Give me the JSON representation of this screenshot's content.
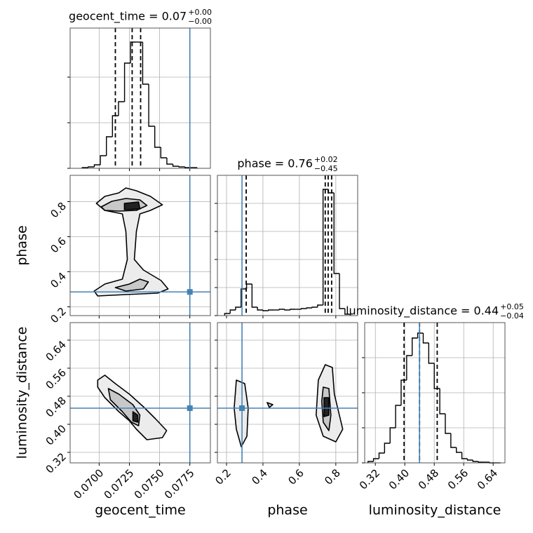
{
  "chart_data": [
    {
      "type": "histogram",
      "title": "geocent_time = 0.07",
      "title_plus": "+0.00",
      "title_minus": "−0.00",
      "bins": [
        0.0686,
        0.0691,
        0.0696,
        0.0701,
        0.0706,
        0.0711,
        0.0716,
        0.0721,
        0.0726,
        0.0731,
        0.0736,
        0.0741,
        0.0746,
        0.0751,
        0.0756,
        0.0761,
        0.0766,
        0.0771,
        0.0776,
        0.0781
      ],
      "counts": [
        1,
        2,
        5,
        18,
        45,
        75,
        95,
        150,
        180,
        180,
        120,
        60,
        30,
        15,
        6,
        3,
        2,
        1,
        1
      ],
      "xlim": [
        0.0676,
        0.0792
      ],
      "xticks": [
        {
          "value": 0.07,
          "label": "0.0700"
        },
        {
          "value": 0.0725,
          "label": "0.0725"
        },
        {
          "value": 0.075,
          "label": "0.0750"
        },
        {
          "value": 0.0775,
          "label": "0.0775"
        }
      ],
      "ylim": [
        0,
        200
      ],
      "yticks": [
        0,
        65,
        130
      ],
      "quantiles": [
        0.07134,
        0.07273,
        0.07343
      ],
      "truth": 0.0775,
      "color": "#000000",
      "truth_color": "#4682b4"
    },
    {
      "type": "contour",
      "ylabel": "phase",
      "xlim": [
        0.0676,
        0.0792
      ],
      "xticks": [
        {
          "value": 0.07,
          "label": "0.0700"
        },
        {
          "value": 0.0725,
          "label": "0.0725"
        },
        {
          "value": 0.075,
          "label": "0.0750"
        },
        {
          "value": 0.0775,
          "label": "0.0775"
        }
      ],
      "ylim": [
        0.15,
        0.95
      ],
      "yticks": [
        0.2,
        0.4,
        0.6,
        0.8
      ],
      "x_truth": 0.0775,
      "y_truth": 0.285,
      "truth_color": "#4682b4",
      "contours": [
        {
          "fill": "#ececec",
          "x": [
            0.06977,
            0.07047,
            0.07163,
            0.07221,
            0.07308,
            0.07424,
            0.07523,
            0.07424,
            0.07337,
            0.07308,
            0.07291,
            0.07366,
            0.07512,
            0.0757,
            0.07483,
            0.07221,
            0.06988,
            0.06959,
            0.07047,
            0.07192,
            0.07233,
            0.07221,
            0.07192,
            0.07047
          ],
          "y": [
            0.79,
            0.83,
            0.85,
            0.878,
            0.862,
            0.83,
            0.782,
            0.75,
            0.73,
            0.63,
            0.47,
            0.41,
            0.35,
            0.302,
            0.278,
            0.27,
            0.262,
            0.29,
            0.33,
            0.358,
            0.47,
            0.63,
            0.73,
            0.75
          ]
        },
        {
          "fill": "#c8c8c8",
          "x": [
            0.07017,
            0.07105,
            0.07221,
            0.07337,
            0.07395,
            0.07308,
            0.07163,
            0.07047
          ],
          "y": [
            0.77,
            0.802,
            0.818,
            0.81,
            0.778,
            0.75,
            0.746,
            0.75
          ]
        },
        {
          "fill": "#c8c8c8",
          "x": [
            0.07134,
            0.0725,
            0.07337,
            0.07407,
            0.07366,
            0.07221
          ],
          "y": [
            0.31,
            0.33,
            0.358,
            0.342,
            0.302,
            0.29
          ]
        },
        {
          "fill": "#222222",
          "x": [
            0.07209,
            0.07326,
            0.07337,
            0.07209
          ],
          "y": [
            0.79,
            0.798,
            0.758,
            0.754
          ]
        }
      ]
    },
    {
      "type": "contour",
      "xlabel": "geocent_time",
      "ylabel": "luminosity_distance",
      "xlim": [
        0.0676,
        0.0792
      ],
      "xticks": [
        {
          "value": 0.07,
          "label": "0.0700"
        },
        {
          "value": 0.0725,
          "label": "0.0725"
        },
        {
          "value": 0.075,
          "label": "0.0750"
        },
        {
          "value": 0.0775,
          "label": "0.0775"
        }
      ],
      "ylim": [
        0.29,
        0.69
      ],
      "yticks": [
        0.32,
        {
          "value": 0.4,
          "label": "0.40"
        },
        0.48,
        0.56,
        0.64
      ],
      "x_truth": 0.0775,
      "y_truth": 0.446,
      "truth_color": "#4682b4",
      "contours": [
        {
          "fill": "#ececec",
          "x": [
            0.06988,
            0.07047,
            0.07134,
            0.0725,
            0.07366,
            0.07465,
            0.07558,
            0.07523,
            0.07395,
            0.07308,
            0.0725,
            0.07163,
            0.07047,
            0.06988
          ],
          "y": [
            0.526,
            0.54,
            0.516,
            0.486,
            0.45,
            0.416,
            0.382,
            0.362,
            0.356,
            0.386,
            0.41,
            0.436,
            0.476,
            0.506
          ]
        },
        {
          "fill": "#c8c8c8",
          "x": [
            0.07076,
            0.07163,
            0.07279,
            0.07337,
            0.07326,
            0.07267,
            0.07192,
            0.07093
          ],
          "y": [
            0.502,
            0.486,
            0.456,
            0.426,
            0.396,
            0.406,
            0.436,
            0.47
          ]
        },
        {
          "fill": "#222222",
          "x": [
            0.07279,
            0.0732,
            0.0732,
            0.07279
          ],
          "y": [
            0.436,
            0.426,
            0.406,
            0.41
          ]
        }
      ]
    },
    {
      "type": "histogram",
      "title": "phase = 0.76",
      "title_plus": "+0.02",
      "title_minus": "−0.45",
      "bins": [
        0.19,
        0.22,
        0.25,
        0.28,
        0.31,
        0.34,
        0.37,
        0.4,
        0.43,
        0.46,
        0.49,
        0.52,
        0.55,
        0.58,
        0.61,
        0.64,
        0.67,
        0.7,
        0.73,
        0.76,
        0.79,
        0.82,
        0.85,
        0.88
      ],
      "counts": [
        3,
        8,
        12,
        38,
        45,
        12,
        8,
        7,
        8,
        8,
        9,
        8,
        9,
        9,
        10,
        11,
        12,
        15,
        180,
        175,
        60,
        10,
        2
      ],
      "xlim": [
        0.15,
        0.92
      ],
      "xticks": [
        0.2,
        0.4,
        0.6,
        0.8
      ],
      "ylim": [
        0,
        200
      ],
      "yticks": [
        0,
        40,
        80,
        120,
        160
      ],
      "quantiles": [
        0.308,
        0.742,
        0.758,
        0.777
      ],
      "truth": 0.285,
      "color": "#000000",
      "truth_color": "#4682b4"
    },
    {
      "type": "contour",
      "xlabel": "phase",
      "xlim": [
        0.15,
        0.92
      ],
      "xticks": [
        0.2,
        0.4,
        0.6,
        0.8
      ],
      "ylim": [
        0.29,
        0.69
      ],
      "yticks": [
        0.32,
        {
          "value": 0.4,
          "label": "0.40"
        },
        0.48,
        0.56,
        0.64
      ],
      "x_truth": 0.285,
      "y_truth": 0.446,
      "truth_color": "#4682b4",
      "contours": [
        {
          "fill": "#ececec",
          "x": [
            0.254,
            0.3,
            0.319,
            0.312,
            0.281,
            0.254,
            0.242
          ],
          "y": [
            0.526,
            0.516,
            0.446,
            0.366,
            0.336,
            0.386,
            0.446
          ]
        },
        {
          "fill": "#ececec",
          "x": [
            0.704,
            0.742,
            0.781,
            0.792,
            0.838,
            0.8,
            0.731,
            0.692
          ],
          "y": [
            0.526,
            0.57,
            0.562,
            0.486,
            0.386,
            0.35,
            0.366,
            0.426
          ]
        },
        {
          "fill": "#c8c8c8",
          "x": [
            0.731,
            0.762,
            0.773,
            0.762,
            0.731,
            0.723
          ],
          "y": [
            0.506,
            0.502,
            0.426,
            0.382,
            0.406,
            0.466
          ]
        },
        {
          "fill": "#222222",
          "x": [
            0.735,
            0.762,
            0.762,
            0.735
          ],
          "y": [
            0.476,
            0.476,
            0.426,
            0.422
          ]
        },
        {
          "fill": "#c8c8c8",
          "x": [
            0.423,
            0.454,
            0.435
          ],
          "y": [
            0.462,
            0.456,
            0.448
          ]
        }
      ]
    },
    {
      "type": "histogram",
      "title": "luminosity_distance = 0.44",
      "title_plus": "+0.05",
      "title_minus": "−0.04",
      "xlabel": "luminosity_distance",
      "bins": [
        0.3,
        0.315,
        0.33,
        0.345,
        0.36,
        0.375,
        0.39,
        0.405,
        0.42,
        0.435,
        0.45,
        0.465,
        0.48,
        0.495,
        0.51,
        0.525,
        0.54,
        0.555,
        0.57,
        0.585,
        0.6,
        0.615,
        0.63,
        0.645,
        0.66
      ],
      "counts": [
        2,
        6,
        14,
        28,
        50,
        82,
        118,
        153,
        178,
        185,
        171,
        142,
        106,
        70,
        42,
        22,
        15,
        6,
        4,
        2,
        1,
        1,
        0,
        0
      ],
      "xlim": [
        0.291,
        0.672
      ],
      "xticks": [
        0.32,
        {
          "value": 0.4,
          "label": "0.40"
        },
        0.48,
        0.56,
        0.64
      ],
      "ylim": [
        0,
        200
      ],
      "yticks": [
        0,
        50,
        100,
        150
      ],
      "quantiles": [
        0.398,
        0.44,
        0.488
      ],
      "truth": 0.44,
      "color": "#000000",
      "truth_color": "#4682b4"
    }
  ]
}
